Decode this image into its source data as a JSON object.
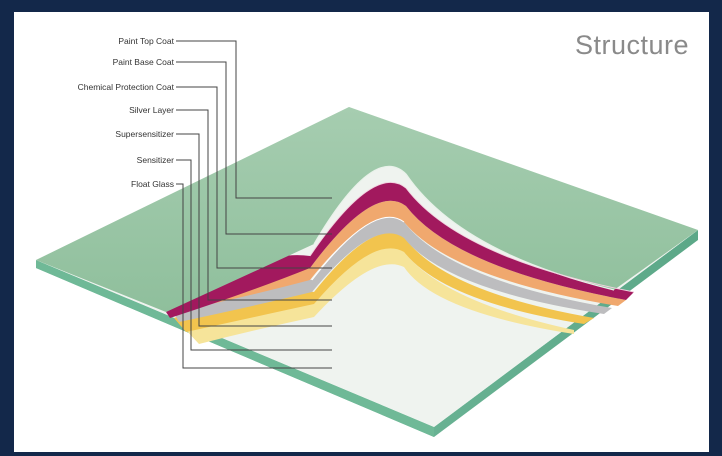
{
  "title": "Structure",
  "layers": [
    {
      "label": "Paint Top Coat",
      "color": "#9fc4a6"
    },
    {
      "label": "Paint Base Coat",
      "color": "#a2195e"
    },
    {
      "label": "Chemical Protection Coat",
      "color": "#f0a86e"
    },
    {
      "label": "Silver Layer",
      "color": "#b7b7b9"
    },
    {
      "label": "Supersensitizer",
      "color": "#f2c44e"
    },
    {
      "label": "Sensitizer",
      "color": "#f7e28a"
    },
    {
      "label": "Float Glass",
      "color": "#bfe0cc"
    }
  ]
}
